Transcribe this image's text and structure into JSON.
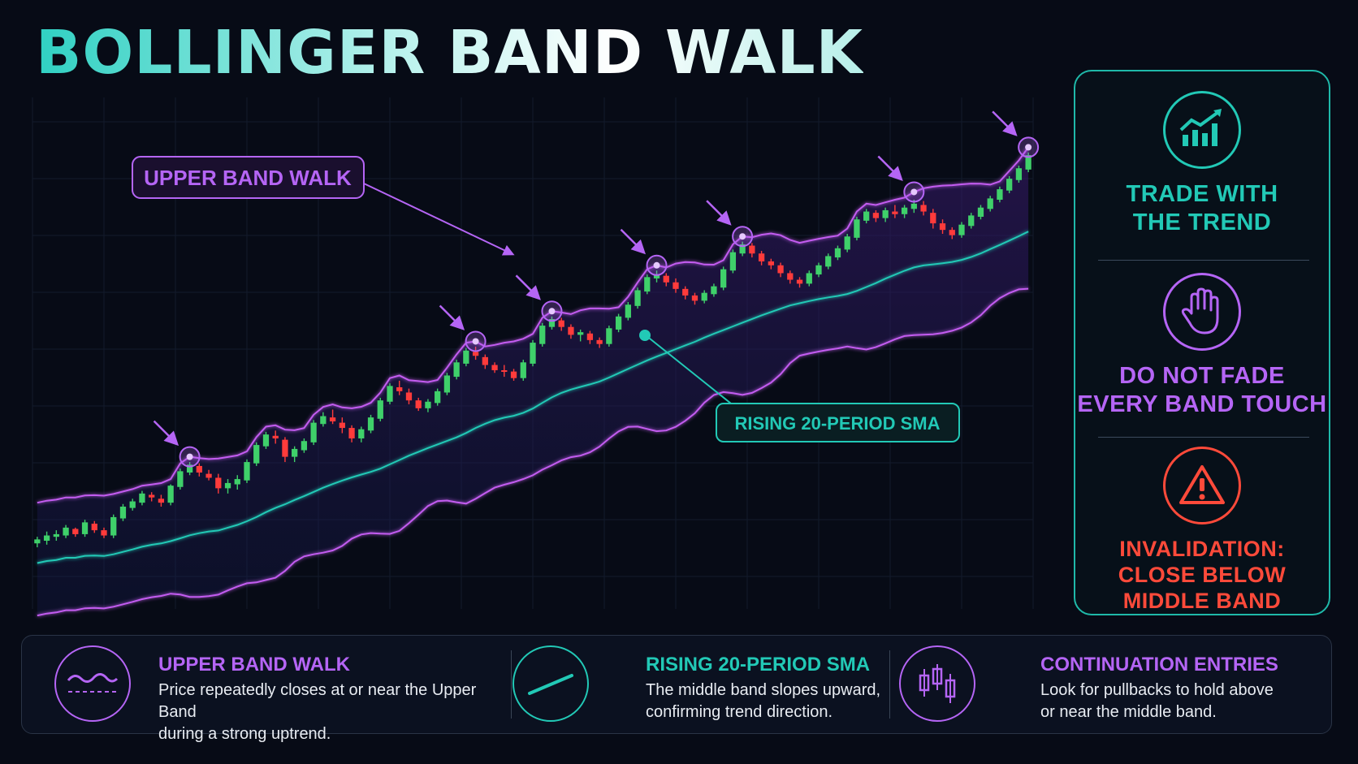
{
  "title": "BOLLINGER BAND WALK",
  "colors": {
    "purple": "#b565f5",
    "teal": "#22c9b6",
    "red": "#ff4a3a",
    "bull": "#3fd06a",
    "bear": "#ff3b3b",
    "sma": "#22c9b6",
    "band": "#c35cf0"
  },
  "callouts": {
    "upper_band_walk": "UPPER BAND WALK",
    "rising_sma": "RISING 20-PERIOD SMA"
  },
  "side_panel": [
    {
      "icon": "trending-up-chart-icon",
      "label": "TRADE WITH\nTHE TREND",
      "color": "#22c9b6"
    },
    {
      "icon": "stop-hand-icon",
      "label": "DO NOT FADE\nEVERY BAND TOUCH",
      "color": "#b565f5"
    },
    {
      "icon": "warning-triangle-icon",
      "label": "INVALIDATION:\nCLOSE BELOW\nMIDDLE BAND",
      "color": "#ff4a3a"
    }
  ],
  "legend": [
    {
      "icon": "band-wave-icon",
      "title": "UPPER BAND WALK",
      "desc": "Price repeatedly closes at or near the Upper Band\nduring a strong uptrend.",
      "color": "#b565f5"
    },
    {
      "icon": "rising-line-icon",
      "title": "RISING 20-PERIOD SMA",
      "desc": "The middle band slopes upward,\nconfirming trend direction.",
      "color": "#22c9b6"
    },
    {
      "icon": "candlesticks-icon",
      "title": "CONTINUATION ENTRIES",
      "desc": "Look for pullbacks to hold above\nor near the middle band.",
      "color": "#b565f5"
    }
  ],
  "chart_data": {
    "type": "candlestick",
    "title": "",
    "xlabel": "",
    "ylabel": "",
    "grid": true,
    "candles": [
      [
        300,
        305,
        297,
        303
      ],
      [
        302,
        309,
        299,
        306
      ],
      [
        305,
        310,
        302,
        307
      ],
      [
        306,
        314,
        304,
        312
      ],
      [
        311,
        312,
        305,
        307
      ],
      [
        307,
        318,
        305,
        316
      ],
      [
        315,
        317,
        308,
        310
      ],
      [
        310,
        312,
        304,
        306
      ],
      [
        306,
        322,
        304,
        320
      ],
      [
        319,
        330,
        317,
        328
      ],
      [
        327,
        334,
        325,
        332
      ],
      [
        331,
        340,
        329,
        338
      ],
      [
        337,
        339,
        332,
        335
      ],
      [
        334,
        337,
        328,
        331
      ],
      [
        331,
        345,
        329,
        344
      ],
      [
        343,
        357,
        341,
        355
      ],
      [
        354,
        362,
        352,
        360
      ],
      [
        359,
        361,
        351,
        354
      ],
      [
        353,
        356,
        348,
        350
      ],
      [
        350,
        353,
        338,
        342
      ],
      [
        342,
        349,
        338,
        346
      ],
      [
        345,
        352,
        341,
        349
      ],
      [
        348,
        364,
        346,
        362
      ],
      [
        361,
        377,
        359,
        375
      ],
      [
        374,
        385,
        372,
        383
      ],
      [
        382,
        386,
        376,
        380
      ],
      [
        379,
        381,
        362,
        366
      ],
      [
        366,
        374,
        362,
        372
      ],
      [
        371,
        380,
        369,
        378
      ],
      [
        377,
        394,
        375,
        392
      ],
      [
        391,
        400,
        389,
        397
      ],
      [
        396,
        402,
        391,
        393
      ],
      [
        392,
        396,
        384,
        388
      ],
      [
        388,
        390,
        377,
        380
      ],
      [
        380,
        389,
        377,
        387
      ],
      [
        386,
        398,
        384,
        396
      ],
      [
        395,
        411,
        393,
        409
      ],
      [
        408,
        422,
        406,
        420
      ],
      [
        419,
        424,
        413,
        416
      ],
      [
        415,
        418,
        406,
        409
      ],
      [
        409,
        411,
        401,
        403
      ],
      [
        403,
        410,
        400,
        408
      ],
      [
        407,
        418,
        405,
        416
      ],
      [
        415,
        430,
        413,
        428
      ],
      [
        427,
        440,
        425,
        438
      ],
      [
        437,
        449,
        435,
        447
      ],
      [
        446,
        450,
        440,
        443
      ],
      [
        442,
        444,
        433,
        436
      ],
      [
        436,
        438,
        430,
        432
      ],
      [
        432,
        436,
        427,
        431
      ],
      [
        431,
        433,
        424,
        426
      ],
      [
        426,
        440,
        424,
        438
      ],
      [
        437,
        455,
        435,
        453
      ],
      [
        452,
        468,
        450,
        466
      ],
      [
        465,
        473,
        463,
        471
      ],
      [
        470,
        472,
        462,
        465
      ],
      [
        465,
        467,
        456,
        459
      ],
      [
        459,
        463,
        454,
        461
      ],
      [
        460,
        462,
        452,
        455
      ],
      [
        455,
        457,
        449,
        452
      ],
      [
        452,
        466,
        450,
        464
      ],
      [
        463,
        475,
        461,
        473
      ],
      [
        472,
        484,
        470,
        482
      ],
      [
        481,
        495,
        479,
        493
      ],
      [
        492,
        505,
        490,
        503
      ],
      [
        502,
        508,
        499,
        505
      ],
      [
        504,
        506,
        496,
        499
      ],
      [
        499,
        502,
        491,
        494
      ],
      [
        494,
        496,
        486,
        489
      ],
      [
        489,
        491,
        482,
        485
      ],
      [
        485,
        493,
        483,
        491
      ],
      [
        490,
        498,
        488,
        496
      ],
      [
        495,
        511,
        493,
        509
      ],
      [
        508,
        524,
        506,
        522
      ],
      [
        521,
        530,
        519,
        528
      ],
      [
        527,
        529,
        518,
        521
      ],
      [
        521,
        523,
        512,
        515
      ],
      [
        515,
        517,
        509,
        512
      ],
      [
        512,
        514,
        503,
        506
      ],
      [
        506,
        508,
        498,
        501
      ],
      [
        501,
        503,
        495,
        498
      ],
      [
        498,
        508,
        496,
        506
      ],
      [
        505,
        514,
        503,
        512
      ],
      [
        511,
        521,
        509,
        519
      ],
      [
        518,
        527,
        516,
        525
      ],
      [
        524,
        536,
        522,
        534
      ],
      [
        533,
        549,
        531,
        547
      ],
      [
        546,
        555,
        544,
        553
      ],
      [
        552,
        554,
        545,
        548
      ],
      [
        548,
        556,
        545,
        554
      ],
      [
        553,
        558,
        548,
        551
      ],
      [
        551,
        558,
        548,
        556
      ],
      [
        555,
        562,
        552,
        559
      ],
      [
        558,
        561,
        550,
        553
      ],
      [
        552,
        555,
        540,
        544
      ],
      [
        544,
        547,
        536,
        539
      ],
      [
        539,
        541,
        532,
        535
      ],
      [
        535,
        545,
        533,
        543
      ],
      [
        542,
        552,
        540,
        550
      ],
      [
        549,
        558,
        547,
        556
      ],
      [
        555,
        565,
        553,
        563
      ],
      [
        562,
        572,
        560,
        570
      ],
      [
        569,
        580,
        567,
        578
      ],
      [
        577,
        588,
        575,
        586
      ],
      [
        585,
        598,
        583,
        596
      ]
    ],
    "y_range": [
      250,
      640
    ]
  }
}
